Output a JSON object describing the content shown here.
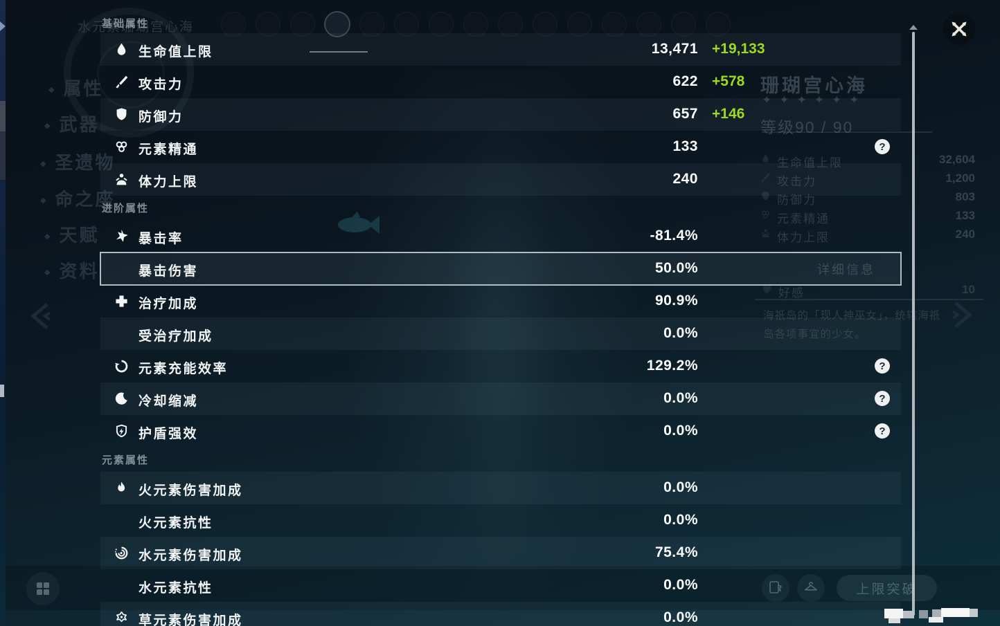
{
  "modal": {
    "help_icon_glyph": "?",
    "sections": [
      {
        "label": "基础属性",
        "rows": [
          {
            "icon": "hp",
            "label": "生命值上限",
            "value": "13,471",
            "bonus": "+19,133",
            "band": true
          },
          {
            "icon": "atk",
            "label": "攻击力",
            "value": "622",
            "bonus": "+578"
          },
          {
            "icon": "def",
            "label": "防御力",
            "value": "657",
            "bonus": "+146",
            "band": true
          },
          {
            "icon": "em",
            "label": "元素精通",
            "value": "133",
            "help": true
          },
          {
            "icon": "stamina",
            "label": "体力上限",
            "value": "240",
            "band": true
          }
        ]
      },
      {
        "label": "进阶属性",
        "rows": [
          {
            "icon": "crit",
            "label": "暴击率",
            "value": "-81.4%"
          },
          {
            "label": "暴击伤害",
            "value": "50.0%",
            "band": true,
            "selected": true
          },
          {
            "icon": "heal",
            "label": "治疗加成",
            "value": "90.9%"
          },
          {
            "label": "受治疗加成",
            "value": "0.0%",
            "band": true
          },
          {
            "icon": "er",
            "label": "元素充能效率",
            "value": "129.2%",
            "help": true
          },
          {
            "icon": "cd",
            "label": "冷却缩减",
            "value": "0.0%",
            "band": true,
            "help": true
          },
          {
            "icon": "shield",
            "label": "护盾强效",
            "value": "0.0%",
            "help": true
          }
        ]
      },
      {
        "label": "元素属性",
        "rows": [
          {
            "icon": "pyro",
            "label": "火元素伤害加成",
            "value": "0.0%",
            "band": true
          },
          {
            "label": "火元素抗性",
            "value": "0.0%"
          },
          {
            "icon": "hydro",
            "label": "水元素伤害加成",
            "value": "75.4%",
            "band": true
          },
          {
            "label": "水元素抗性",
            "value": "0.0%"
          },
          {
            "icon": "dendro",
            "label": "草元素伤害加成",
            "value": "0.0%",
            "band": true
          }
        ]
      }
    ]
  },
  "background": {
    "top_title": "水元素珊瑚宫心海",
    "party_avatars": 15,
    "nav": [
      {
        "label": "属性"
      },
      {
        "label": "武器"
      },
      {
        "label": "圣遗物"
      },
      {
        "label": "命之座"
      },
      {
        "label": "天赋"
      },
      {
        "label": "资料"
      }
    ],
    "character": {
      "name": "珊瑚宫心海",
      "stars": 6,
      "level_label": "等级90 / 90"
    },
    "stats": [
      {
        "icon": "hp",
        "label": "生命值上限",
        "value": "32,604"
      },
      {
        "icon": "atk",
        "label": "攻击力",
        "value": "1,200"
      },
      {
        "icon": "def",
        "label": "防御力",
        "value": "803"
      },
      {
        "icon": "em",
        "label": "元素精通",
        "value": "133"
      },
      {
        "icon": "stamina",
        "label": "体力上限",
        "value": "240"
      }
    ],
    "details_label": "详细信息",
    "friendship": {
      "label": "好感",
      "value": "10"
    },
    "description": "海祇岛的「现人神巫女」，统辖海祇岛各项事宜的少女。",
    "ascend_label": "上限突破"
  },
  "colors": {
    "bonus_green": "#9cd91f",
    "select_border": "#cdd6da",
    "scrollbar": "#c9ced3"
  }
}
